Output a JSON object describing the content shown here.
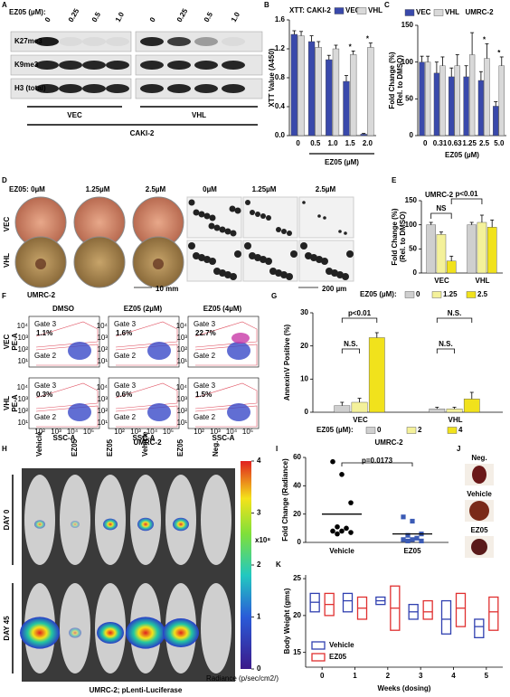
{
  "panel_labels": [
    "A",
    "B",
    "C",
    "D",
    "E",
    "F",
    "G",
    "H",
    "I",
    "J",
    "K"
  ],
  "blot": {
    "ez05_label": "EZ05 (µM):",
    "doses": [
      "0",
      "0.25",
      "0.5",
      "1.0",
      "0",
      "0.25",
      "0.5",
      "1.0"
    ],
    "rows": [
      "K27me3",
      "K9me3",
      "H3 (total)"
    ],
    "groups": [
      "VEC",
      "VHL"
    ],
    "cell_line": "CAKI-2"
  },
  "colony": {
    "ez05_label": "EZ05:",
    "doses": [
      "0µM",
      "1.25µM",
      "2.5µM",
      "0µM",
      "1.25µM",
      "2.5µM"
    ],
    "rows": [
      "VEC",
      "VHL"
    ],
    "cell_line": "UMRC-2",
    "scale_bars": [
      "10 mm",
      "200 µm"
    ]
  },
  "flow": {
    "columns": [
      "DMSO",
      "EZ05 (2µM)",
      "EZ05 (4µM)"
    ],
    "rows": [
      "VEC",
      "VHL"
    ],
    "y_axis": "PE-A",
    "x_axis": "SSC-A",
    "gate_high": "Gate 3",
    "gate_low": "Gate 2",
    "percentages": [
      [
        "1.1%",
        "1.6%",
        "22.7%"
      ],
      [
        "0.3%",
        "0.6%",
        "1.5%"
      ]
    ],
    "y_ticks": [
      "10¹",
      "10²",
      "10³",
      "10⁴"
    ],
    "x_ticks": [
      "10²",
      "10³",
      "10⁴",
      "10⁵"
    ],
    "cell_line": "UMRC-2"
  },
  "imaging": {
    "columns": [
      "Vehicle",
      "EZ05",
      "EZ05",
      "Vehicle",
      "EZ05",
      "Neg."
    ],
    "rows": [
      "DAY 0",
      "DAY 45"
    ],
    "colorbar_lim": [
      0,
      4
    ],
    "colorbar_ticks": [
      0,
      1,
      2,
      3,
      4
    ],
    "colorbar_unit": "x10⁸",
    "colorbar_label": "Radiance (p/sec/cm2/)",
    "caption": "UMRC-2; pLenti-Luciferase"
  },
  "kidneys": {
    "labels": [
      "Neg.",
      "Vehicle",
      "EZ05"
    ]
  },
  "chart_data": [
    {
      "type": "bar",
      "title": "XTT: CAKI-2",
      "y_label": [
        "XTT Value (A450)"
      ],
      "x_label": "EZ05 (µM)",
      "categories": [
        "0",
        "0.5",
        "1.0",
        "1.5",
        "2.0"
      ],
      "series": [
        {
          "name": "VEC",
          "color": "#3949ab",
          "values": [
            1.4,
            1.3,
            1.05,
            0.75,
            0.02
          ],
          "errors": [
            0.05,
            0.08,
            0.06,
            0.08,
            0.01
          ]
        },
        {
          "name": "VHL",
          "color": "#d9d9d9",
          "values": [
            1.38,
            1.22,
            1.2,
            1.12,
            1.22
          ],
          "errors": [
            0.06,
            0.08,
            0.05,
            0.05,
            0.06
          ]
        }
      ],
      "significance": [
        null,
        null,
        null,
        "*",
        "*"
      ],
      "ylim": [
        0,
        1.6
      ],
      "yticks": [
        {
          "value": 0,
          "label": "0.0"
        },
        0.4,
        0.8,
        1.2,
        1.6
      ]
    },
    {
      "type": "bar",
      "title": "UMRC-2",
      "y_label": [
        "Fold Change (%)",
        "(Rel. to DMSO)"
      ],
      "x_label": "EZ05 (µM)",
      "categories": [
        "0",
        "0.31",
        "0.63",
        "1.25",
        "2.5",
        "5.0"
      ],
      "series": [
        {
          "name": "VEC",
          "color": "#3949ab",
          "values": [
            100,
            85,
            80,
            80,
            75,
            40
          ],
          "errors": [
            8,
            15,
            12,
            15,
            12,
            6
          ]
        },
        {
          "name": "VHL",
          "color": "#d9d9d9",
          "values": [
            100,
            95,
            95,
            110,
            105,
            95
          ],
          "errors": [
            8,
            12,
            15,
            30,
            20,
            12
          ]
        }
      ],
      "significance": [
        null,
        null,
        null,
        null,
        "*",
        "*"
      ],
      "ylim": [
        0,
        150
      ],
      "yticks": [
        0,
        50,
        100,
        150
      ]
    },
    {
      "type": "bar",
      "title": "UMRC-2",
      "y_label": [
        "Fold Change (%)",
        "(Rel. to DMSO)"
      ],
      "legend_title": "EZ05 (µM):",
      "categories": [
        "VEC",
        "VHL"
      ],
      "series": [
        {
          "name": "0",
          "color": "#cfcfcf",
          "values": [
            100,
            100
          ],
          "errors": [
            5,
            5
          ]
        },
        {
          "name": "1.25",
          "color": "#f4f19a",
          "values": [
            80,
            105
          ],
          "errors": [
            5,
            15
          ]
        },
        {
          "name": "2.5",
          "color": "#f1e21c",
          "values": [
            25,
            95
          ],
          "errors": [
            10,
            15
          ]
        }
      ],
      "annotations": [
        "NS",
        "p<0.01"
      ],
      "ylim": [
        0,
        150
      ],
      "yticks": [
        0,
        50,
        100,
        150
      ]
    },
    {
      "type": "bar",
      "y_label": [
        "AnnexinV Positive (%)"
      ],
      "legend_title": "EZ05 (µM):",
      "x_label": "UMRC-2",
      "categories": [
        "VEC",
        "VHL"
      ],
      "series": [
        {
          "name": "0",
          "color": "#cfcfcf",
          "values": [
            2,
            1
          ],
          "errors": [
            1,
            0.5
          ]
        },
        {
          "name": "2",
          "color": "#f4f19a",
          "values": [
            3,
            1
          ],
          "errors": [
            1.2,
            0.5
          ]
        },
        {
          "name": "4",
          "color": "#f1e21c",
          "values": [
            22.5,
            4
          ],
          "errors": [
            1.5,
            2
          ]
        }
      ],
      "annotations": [
        "p<0.01",
        "N.S.",
        "N.S.",
        "N.S."
      ],
      "ylim": [
        0,
        30
      ],
      "yticks": [
        0,
        10,
        20,
        30
      ]
    },
    {
      "type": "strip",
      "y_label": [
        "Fold Change (Radiance)"
      ],
      "categories": [
        "Vehicle",
        "EZ05"
      ],
      "points": [
        [
          57,
          48,
          28,
          11,
          10,
          8,
          8,
          7,
          6
        ],
        [
          18,
          15,
          6,
          5,
          3,
          2,
          2,
          1,
          1
        ]
      ],
      "means": [
        20,
        6
      ],
      "colors": [
        "#000000",
        "#3b5bb5"
      ],
      "annotation": "p=0.0173",
      "ylim": [
        0,
        60
      ],
      "yticks": [
        0,
        20,
        40,
        60
      ]
    },
    {
      "type": "box",
      "y_label": [
        "Body Weight (gms)"
      ],
      "x_label": "Weeks (dosing)",
      "x": [
        0,
        1,
        2,
        3,
        4,
        5
      ],
      "series": [
        {
          "name": "Vehicle",
          "color": "#3040b0",
          "low": [
            20.5,
            20.5,
            21.5,
            19.5,
            17.5,
            17
          ],
          "high": [
            23,
            23,
            22.5,
            21.5,
            22,
            19.5
          ],
          "median": [
            21.8,
            22,
            22,
            20.5,
            19.5,
            18.5
          ]
        },
        {
          "name": "EZ05",
          "color": "#e03030",
          "low": [
            20,
            19.5,
            18,
            19.5,
            18.5,
            18
          ],
          "high": [
            23,
            22.5,
            24,
            22,
            23,
            22.5
          ],
          "median": [
            21.5,
            21,
            21,
            20.5,
            21,
            20.5
          ]
        }
      ],
      "xlim": [
        -0.5,
        5.5
      ],
      "xticks": [
        0,
        1,
        2,
        3,
        4,
        5
      ],
      "ylim": [
        13,
        25.5
      ],
      "yticks": [
        15,
        20,
        25
      ]
    }
  ]
}
